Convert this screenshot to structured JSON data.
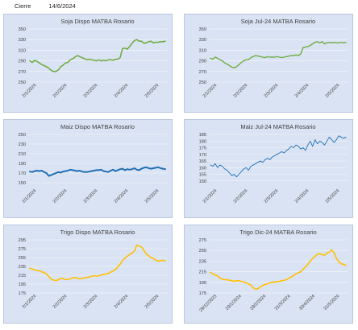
{
  "header": {
    "label": "Cierre",
    "date": "14/6/2024"
  },
  "chart_data": [
    {
      "type": "line",
      "title": "Soja Dispo MATBA Rosario",
      "color": "#70ad47",
      "stroke_width": 1.6,
      "ylim": [
        250,
        350
      ],
      "yticks": [
        "250",
        "270",
        "290",
        "310",
        "330",
        "350"
      ],
      "xticks": [
        "2/1/2024",
        "2/2/2024",
        "2/3/2024",
        "2/4/2024",
        "2/5/2024"
      ],
      "series": [
        {
          "values": [
            290,
            287,
            291,
            289,
            286,
            283,
            281,
            279,
            276,
            272,
            270,
            270,
            273,
            279,
            282,
            286,
            287,
            292,
            294,
            297,
            300,
            298,
            296,
            294,
            292,
            293,
            292,
            291,
            290,
            292,
            290,
            291,
            290,
            292,
            292,
            291,
            293,
            293,
            296,
            313,
            314,
            312,
            317,
            323,
            328,
            330,
            327,
            327,
            323,
            324,
            326,
            327,
            324,
            325,
            325,
            326,
            326,
            327
          ]
        }
      ]
    },
    {
      "type": "line",
      "title": "Soja Jul-24 MATBA Rosario",
      "color": "#70ad47",
      "stroke_width": 1.4,
      "ylim": [
        250,
        350
      ],
      "yticks": [
        "250",
        "270",
        "290",
        "310",
        "330",
        "350"
      ],
      "xticks": [
        "2/1/2024",
        "2/2/2024",
        "2/3/2024",
        "2/4/2024",
        "2/5/2024"
      ],
      "series": [
        {
          "values": [
            295,
            293,
            297,
            295,
            292,
            290,
            286,
            284,
            281,
            278,
            277,
            279,
            283,
            287,
            290,
            292,
            292,
            296,
            298,
            300,
            299,
            298,
            297,
            296,
            298,
            297,
            297,
            297,
            298,
            297,
            296,
            297,
            298,
            299,
            300,
            300,
            301,
            300,
            303,
            315,
            316,
            317,
            319,
            322,
            325,
            326,
            324,
            326,
            322,
            324,
            325,
            324,
            325,
            324,
            324,
            325,
            324,
            325
          ]
        }
      ]
    },
    {
      "type": "line",
      "title": "Maiz Dispo MATBA Rosario",
      "color": "#1f6fb5",
      "stroke_width": 2.0,
      "ylim": [
        140,
        250
      ],
      "yticks": [
        "150",
        "170",
        "190",
        "210",
        "230",
        "250"
      ],
      "xticks": [
        "2/1/2024",
        "2/2/2024",
        "2/3/2024",
        "2/4/2024",
        "2/5/2024"
      ],
      "series": [
        {
          "values": [
            173,
            172,
            174,
            175,
            174,
            175,
            172,
            170,
            164,
            166,
            168,
            170,
            172,
            171,
            173,
            174,
            175,
            177,
            176,
            175,
            174,
            175,
            173,
            172,
            172,
            173,
            174,
            175,
            176,
            176,
            177,
            174,
            173,
            172,
            175,
            177,
            174,
            176,
            178,
            179,
            176,
            178,
            177,
            178,
            180,
            177,
            176,
            179,
            181,
            182,
            180,
            179,
            180,
            181,
            182,
            180,
            179,
            178
          ]
        }
      ]
    },
    {
      "type": "line",
      "title": "Maiz Jul-24 MATBA Rosario",
      "color": "#1f6fb5",
      "stroke_width": 0.9,
      "ylim": [
        145,
        185
      ],
      "yticks": [
        "150",
        "155",
        "160",
        "165",
        "170",
        "175",
        "180",
        "185"
      ],
      "xticks": [
        "2/1/2024",
        "2/2/2024",
        "2/3/2024",
        "2/4/2024",
        "2/5/2024"
      ],
      "series": [
        {
          "values": [
            162,
            161,
            163,
            160,
            162,
            161,
            159,
            158,
            156,
            154,
            155,
            153,
            155,
            157,
            159,
            160,
            158,
            161,
            162,
            163,
            164,
            165,
            164,
            166,
            167,
            166,
            168,
            169,
            170,
            171,
            172,
            171,
            173,
            174,
            176,
            175,
            177,
            176,
            174,
            175,
            173,
            177,
            180,
            176,
            181,
            178,
            180,
            179,
            177,
            180,
            183,
            181,
            179,
            181,
            184,
            183,
            182,
            183
          ]
        }
      ]
    },
    {
      "type": "line",
      "title": "Trigo Dispo MATBA Rosario",
      "color": "#ffc000",
      "stroke_width": 1.6,
      "ylim": [
        175,
        295
      ],
      "yticks": [
        "175",
        "195",
        "215",
        "235",
        "255",
        "275",
        "295"
      ],
      "xticks": [
        "2/1/2024",
        "2/2/2024",
        "2/3/2024",
        "2/4/2024",
        "2/5/2024"
      ],
      "series": [
        {
          "values": [
            231,
            229,
            227,
            226,
            225,
            223,
            221,
            218,
            212,
            206,
            204,
            203,
            205,
            208,
            207,
            205,
            206,
            207,
            209,
            210,
            208,
            207,
            208,
            209,
            210,
            211,
            213,
            214,
            213,
            214,
            215,
            217,
            218,
            219,
            222,
            225,
            228,
            234,
            240,
            248,
            254,
            258,
            262,
            265,
            270,
            283,
            281,
            279,
            271,
            263,
            259,
            255,
            253,
            249,
            247,
            248,
            249,
            247
          ]
        }
      ]
    },
    {
      "type": "line",
      "title": "Trigo Dic-24 MATBA Rosario",
      "color": "#ffc000",
      "stroke_width": 1.6,
      "ylim": [
        175,
        275
      ],
      "yticks": [
        "175",
        "195",
        "215",
        "235",
        "255",
        "275"
      ],
      "xticks": [
        "29/12/2023",
        "29/1/2024",
        "29/2/2024",
        "31/3/2024",
        "30/4/2024",
        "31/5/2024"
      ],
      "series": [
        {
          "values": [
            214,
            211,
            209,
            207,
            203,
            201,
            200,
            200,
            199,
            198,
            197,
            198,
            198,
            197,
            196,
            194,
            192,
            190,
            185,
            182,
            183,
            186,
            189,
            191,
            192,
            194,
            195,
            196,
            196,
            197,
            198,
            199,
            200,
            203,
            205,
            208,
            211,
            213,
            215,
            220,
            224,
            229,
            235,
            240,
            244,
            248,
            249,
            247,
            246,
            250,
            252,
            256,
            251,
            240,
            234,
            230,
            229,
            227
          ]
        }
      ]
    }
  ]
}
